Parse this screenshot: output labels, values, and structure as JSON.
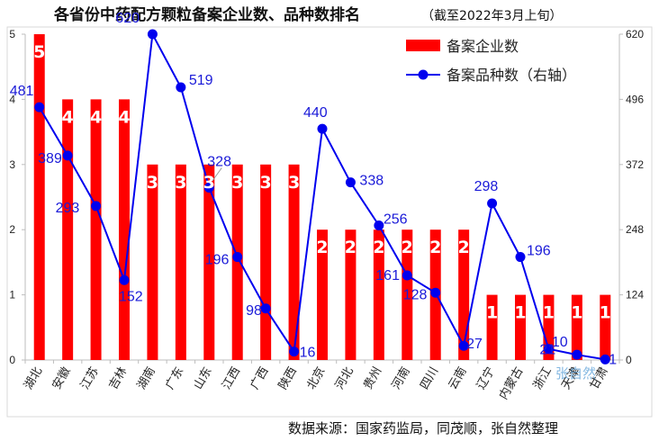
{
  "title": "各省份中药配方颗粒备案企业数、品种数排名",
  "subtitle": "（截至2022年3月上旬）",
  "source": "数据来源：国家药监局，同茂顺，张自然整理",
  "watermark": "张自然",
  "colors": {
    "bar": "#ff0000",
    "line": "#0000ee",
    "label": "#1a1ad8"
  },
  "chart_data": {
    "type": "bar+line",
    "categories": [
      "湖北",
      "安徽",
      "江苏",
      "吉林",
      "湖南",
      "广东",
      "山东",
      "江西",
      "广西",
      "陕西",
      "北京",
      "河北",
      "贵州",
      "河南",
      "四川",
      "云南",
      "辽宁",
      "内蒙古",
      "浙江",
      "天津",
      "甘肃"
    ],
    "series": [
      {
        "name": "备案企业数",
        "type": "bar",
        "axis": "left",
        "values": [
          5,
          4,
          4,
          4,
          3,
          3,
          3,
          3,
          3,
          3,
          2,
          2,
          2,
          2,
          2,
          2,
          1,
          1,
          1,
          1,
          1
        ]
      },
      {
        "name": "备案品种数（右轴）",
        "type": "line",
        "axis": "right",
        "values": [
          481,
          389,
          293,
          152,
          620,
          519,
          328,
          196,
          98,
          16,
          440,
          338,
          256,
          161,
          128,
          27,
          298,
          196,
          21,
          10,
          1
        ]
      }
    ],
    "y_left": {
      "lim": [
        0,
        5
      ],
      "ticks": [
        "0",
        "1",
        "2",
        "3",
        "4",
        "5"
      ]
    },
    "y_right": {
      "lim": [
        0,
        620
      ],
      "ticks": [
        "0",
        "124",
        "248",
        "372",
        "496",
        "620"
      ]
    },
    "legend": [
      "备案企业数",
      "备案品种数（右轴）"
    ],
    "legend_position": "top-right"
  }
}
